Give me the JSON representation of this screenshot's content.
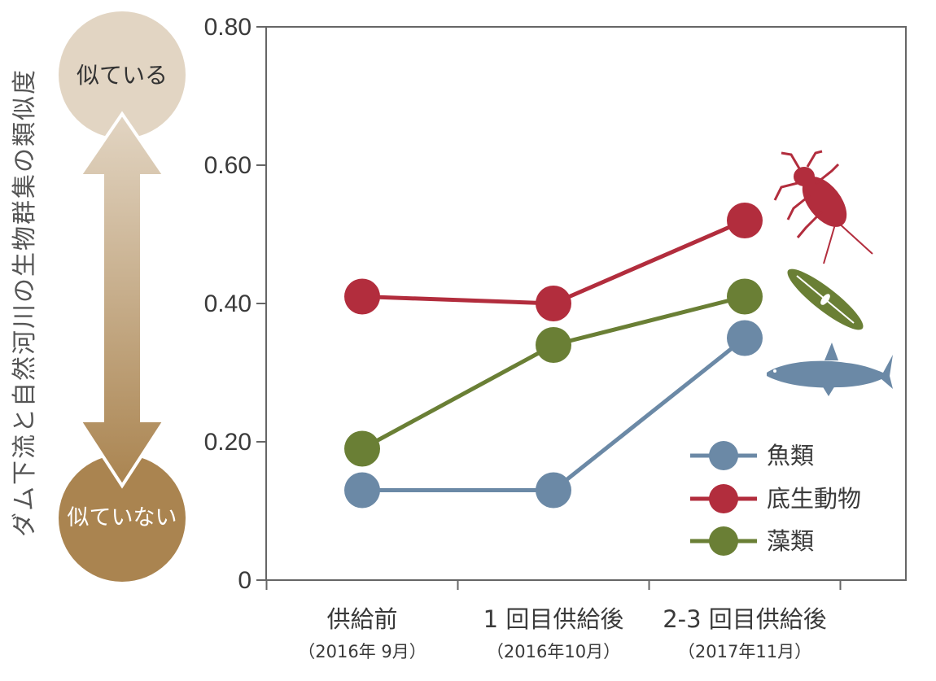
{
  "scale_indicator": {
    "top_label": "似ている",
    "bottom_label": "似ていない",
    "top_color": "#e2d5c3",
    "bottom_color": "#aa8450"
  },
  "chart_data": {
    "type": "line",
    "ylabel": "ダム下流と自然河川の生物群集の類似度",
    "xlabel": "",
    "title": "",
    "ylim": [
      0,
      0.8
    ],
    "yticks": [
      0,
      0.2,
      0.4,
      0.6,
      0.8
    ],
    "ytick_labels": [
      "0",
      "0.20",
      "0.40",
      "0.60",
      "0.80"
    ],
    "categories": [
      {
        "label": "供給前",
        "sublabel": "（2016年 9月）"
      },
      {
        "label": "1 回目供給後",
        "sublabel": "（2016年10月）"
      },
      {
        "label": "2-3 回目供給後",
        "sublabel": "（2017年11月）"
      }
    ],
    "series": [
      {
        "name": "底生動物",
        "color": "#b22d3d",
        "values": [
          0.41,
          0.4,
          0.52
        ]
      },
      {
        "name": "藻類",
        "color": "#6a7f35",
        "values": [
          0.19,
          0.34,
          0.41
        ]
      },
      {
        "name": "魚類",
        "color": "#6b89a6",
        "values": [
          0.13,
          0.13,
          0.35
        ]
      }
    ],
    "legend": {
      "position": "bottom-right",
      "order": [
        "魚類",
        "底生動物",
        "藻類"
      ]
    },
    "grid": false,
    "icons": [
      "aquatic-insect-icon",
      "diatom-icon",
      "fish-icon"
    ]
  }
}
